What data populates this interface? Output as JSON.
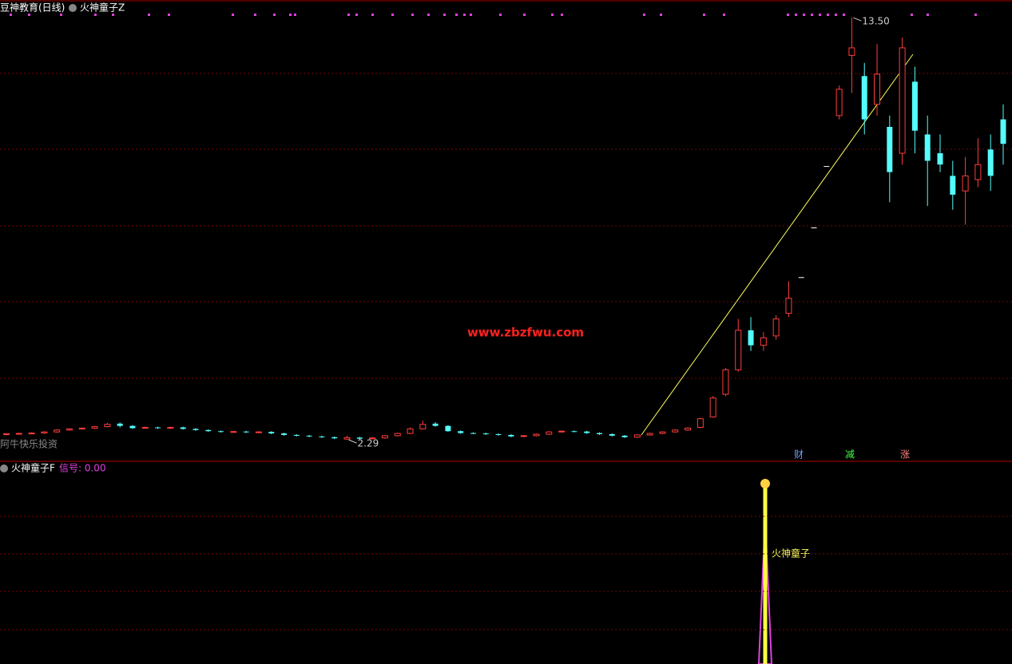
{
  "chart_data": {
    "type": "candlestick",
    "title": "豆神教育(日线)",
    "indicator_top": "火神童子Z",
    "watermark": "www.zbzfwu.com",
    "source_note": "阿牛快乐投资",
    "ylim": [
      1.72,
      13.97
    ],
    "up_color": "#ff3c3c",
    "down_color": "#54fcfc",
    "flat_color": "#ffffff",
    "grid": true,
    "open": [
      2.43,
      2.45,
      2.46,
      2.47,
      2.5,
      2.55,
      2.58,
      2.6,
      2.64,
      2.72,
      2.66,
      2.6,
      2.62,
      2.6,
      2.62,
      2.58,
      2.55,
      2.52,
      2.5,
      2.51,
      2.49,
      2.5,
      2.46,
      2.42,
      2.4,
      2.38,
      2.36,
      2.31,
      2.35,
      2.32,
      2.34,
      2.4,
      2.46,
      2.58,
      2.72,
      2.66,
      2.52,
      2.47,
      2.46,
      2.44,
      2.42,
      2.38,
      2.4,
      2.44,
      2.5,
      2.52,
      2.51,
      2.47,
      2.44,
      2.4,
      2.36,
      2.42,
      2.46,
      2.5,
      2.55,
      2.62,
      2.9,
      3.5,
      4.15,
      5.2,
      4.8,
      5.05,
      5.65,
      6.61,
      7.93,
      9.56,
      10.9,
      12.5,
      11.95,
      11.2,
      10.6,
      9.9,
      11.8,
      10.4,
      9.9,
      9.3,
      8.9,
      9.2,
      10.0,
      10.8
    ],
    "high": [
      2.47,
      2.48,
      2.49,
      2.52,
      2.57,
      2.6,
      2.62,
      2.66,
      2.74,
      2.75,
      2.68,
      2.64,
      2.64,
      2.64,
      2.64,
      2.6,
      2.57,
      2.54,
      2.53,
      2.53,
      2.52,
      2.52,
      2.48,
      2.44,
      2.42,
      2.4,
      2.38,
      2.4,
      2.37,
      2.36,
      2.42,
      2.48,
      2.62,
      2.8,
      2.76,
      2.68,
      2.54,
      2.49,
      2.48,
      2.46,
      2.44,
      2.42,
      2.46,
      2.52,
      2.54,
      2.54,
      2.53,
      2.49,
      2.46,
      2.42,
      2.44,
      2.48,
      2.52,
      2.57,
      2.62,
      2.88,
      3.45,
      4.2,
      5.5,
      5.55,
      5.15,
      5.6,
      6.5,
      6.61,
      7.93,
      9.56,
      11.7,
      13.5,
      12.3,
      12.8,
      10.9,
      12.97,
      12.2,
      10.9,
      10.4,
      9.7,
      9.8,
      10.3,
      10.4,
      11.2
    ],
    "low": [
      2.41,
      2.43,
      2.44,
      2.45,
      2.48,
      2.53,
      2.56,
      2.58,
      2.62,
      2.62,
      2.58,
      2.58,
      2.58,
      2.58,
      2.56,
      2.53,
      2.5,
      2.48,
      2.48,
      2.47,
      2.47,
      2.44,
      2.4,
      2.38,
      2.36,
      2.34,
      2.31,
      2.29,
      2.3,
      2.3,
      2.32,
      2.38,
      2.44,
      2.56,
      2.64,
      2.5,
      2.45,
      2.44,
      2.42,
      2.4,
      2.36,
      2.36,
      2.38,
      2.42,
      2.48,
      2.49,
      2.45,
      2.42,
      2.38,
      2.34,
      2.34,
      2.4,
      2.44,
      2.48,
      2.53,
      2.6,
      2.88,
      3.45,
      4.1,
      4.65,
      4.65,
      4.95,
      5.55,
      6.61,
      7.93,
      9.56,
      10.8,
      11.5,
      10.4,
      10.9,
      8.6,
      9.6,
      9.9,
      8.5,
      9.4,
      8.4,
      8.0,
      9.0,
      8.9,
      9.6
    ],
    "close": [
      2.45,
      2.46,
      2.47,
      2.5,
      2.55,
      2.58,
      2.6,
      2.64,
      2.7,
      2.66,
      2.6,
      2.62,
      2.6,
      2.62,
      2.58,
      2.55,
      2.52,
      2.5,
      2.51,
      2.49,
      2.5,
      2.46,
      2.42,
      2.4,
      2.38,
      2.36,
      2.33,
      2.35,
      2.32,
      2.34,
      2.4,
      2.46,
      2.58,
      2.7,
      2.66,
      2.52,
      2.47,
      2.46,
      2.44,
      2.42,
      2.38,
      2.4,
      2.44,
      2.5,
      2.52,
      2.51,
      2.47,
      2.44,
      2.4,
      2.36,
      2.42,
      2.46,
      2.5,
      2.55,
      2.6,
      2.85,
      3.4,
      4.15,
      5.2,
      4.8,
      5.0,
      5.5,
      6.05,
      6.61,
      7.93,
      9.56,
      11.6,
      12.7,
      10.8,
      12.0,
      9.4,
      12.7,
      10.5,
      9.7,
      9.6,
      8.8,
      9.3,
      9.6,
      9.3,
      10.15
    ],
    "max_label": {
      "value": 13.5,
      "label": "13.50"
    },
    "min_label": {
      "value": 2.29,
      "label": "2.29"
    },
    "event_markers": [
      "财",
      "减",
      "涨"
    ],
    "indicator_bottom": "火神童子F",
    "signal_text": "信号: 0.00",
    "signal_tag": "火神童子"
  }
}
